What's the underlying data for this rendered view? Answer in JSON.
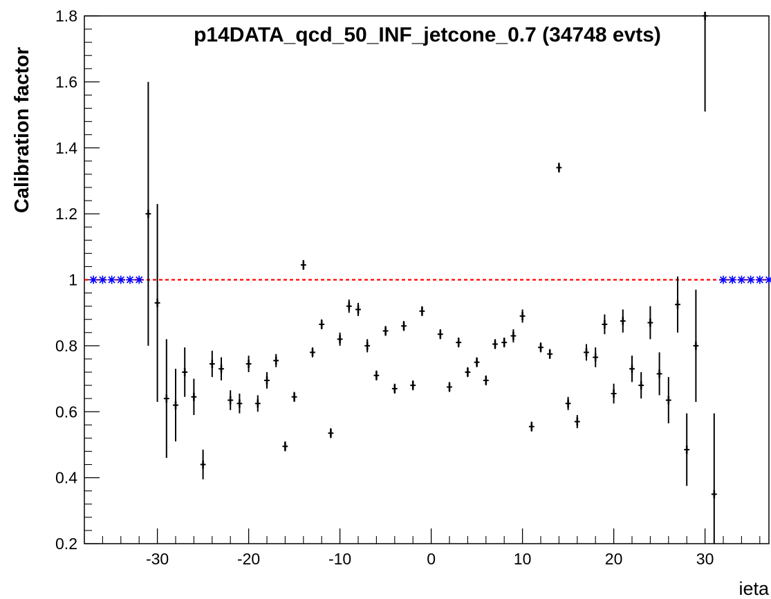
{
  "chart_data": {
    "type": "scatter",
    "title": "p14DATA_qcd_50_INF_jetcone_0.7 (34748 evts)",
    "xlabel": "ieta",
    "ylabel": "Calibration factor",
    "xlim": [
      -38,
      37
    ],
    "ylim": [
      0.2,
      1.8
    ],
    "xticks": [
      -30,
      -20,
      -10,
      0,
      10,
      20,
      30
    ],
    "xtick_labels": [
      "-30",
      "-20",
      "-10",
      "0",
      "10",
      "20",
      "30"
    ],
    "yticks": [
      0.2,
      0.4,
      0.6,
      0.8,
      1.0,
      1.2,
      1.4,
      1.6,
      1.8
    ],
    "ytick_labels": [
      "0.2",
      "0.4",
      "0.6",
      "0.8",
      "1",
      "1.2",
      "1.4",
      "1.6",
      "1.8"
    ],
    "grid": false,
    "reference_line": {
      "y": 1.0,
      "color": "#ff0000",
      "style": "dashed"
    },
    "colors": {
      "points": "#000000",
      "default_markers": "#0000ff",
      "reference": "#ff0000"
    },
    "series": [
      {
        "marker": "cross-with-error-bars",
        "points": [
          {
            "x": -31,
            "y": 1.2,
            "err": 0.4
          },
          {
            "x": -30,
            "y": 0.93,
            "err": 0.3
          },
          {
            "x": -29,
            "y": 0.64,
            "err": 0.18
          },
          {
            "x": -28,
            "y": 0.62,
            "err": 0.11
          },
          {
            "x": -27,
            "y": 0.72,
            "err": 0.075
          },
          {
            "x": -26,
            "y": 0.645,
            "err": 0.055
          },
          {
            "x": -25,
            "y": 0.44,
            "err": 0.045
          },
          {
            "x": -24,
            "y": 0.745,
            "err": 0.04
          },
          {
            "x": -23,
            "y": 0.73,
            "err": 0.035
          },
          {
            "x": -22,
            "y": 0.635,
            "err": 0.03
          },
          {
            "x": -21,
            "y": 0.625,
            "err": 0.03
          },
          {
            "x": -20,
            "y": 0.745,
            "err": 0.025
          },
          {
            "x": -19,
            "y": 0.625,
            "err": 0.025
          },
          {
            "x": -18,
            "y": 0.695,
            "err": 0.025
          },
          {
            "x": -17,
            "y": 0.755,
            "err": 0.02
          },
          {
            "x": -16,
            "y": 0.495,
            "err": 0.015
          },
          {
            "x": -15,
            "y": 0.645,
            "err": 0.015
          },
          {
            "x": -14,
            "y": 1.045,
            "err": 0.015
          },
          {
            "x": -13,
            "y": 0.78,
            "err": 0.015
          },
          {
            "x": -12,
            "y": 0.865,
            "err": 0.015
          },
          {
            "x": -11,
            "y": 0.535,
            "err": 0.015
          },
          {
            "x": -10,
            "y": 0.82,
            "err": 0.02
          },
          {
            "x": -9,
            "y": 0.92,
            "err": 0.02
          },
          {
            "x": -8,
            "y": 0.91,
            "err": 0.02
          },
          {
            "x": -7,
            "y": 0.8,
            "err": 0.02
          },
          {
            "x": -6,
            "y": 0.71,
            "err": 0.015
          },
          {
            "x": -5,
            "y": 0.845,
            "err": 0.015
          },
          {
            "x": -4,
            "y": 0.67,
            "err": 0.015
          },
          {
            "x": -3,
            "y": 0.86,
            "err": 0.015
          },
          {
            "x": -2,
            "y": 0.68,
            "err": 0.015
          },
          {
            "x": -1,
            "y": 0.905,
            "err": 0.015
          },
          {
            "x": 1,
            "y": 0.835,
            "err": 0.015
          },
          {
            "x": 2,
            "y": 0.675,
            "err": 0.015
          },
          {
            "x": 3,
            "y": 0.81,
            "err": 0.015
          },
          {
            "x": 4,
            "y": 0.72,
            "err": 0.015
          },
          {
            "x": 5,
            "y": 0.75,
            "err": 0.015
          },
          {
            "x": 6,
            "y": 0.695,
            "err": 0.015
          },
          {
            "x": 7,
            "y": 0.805,
            "err": 0.015
          },
          {
            "x": 8,
            "y": 0.81,
            "err": 0.015
          },
          {
            "x": 9,
            "y": 0.83,
            "err": 0.02
          },
          {
            "x": 10,
            "y": 0.89,
            "err": 0.02
          },
          {
            "x": 11,
            "y": 0.555,
            "err": 0.015
          },
          {
            "x": 12,
            "y": 0.795,
            "err": 0.015
          },
          {
            "x": 13,
            "y": 0.775,
            "err": 0.015
          },
          {
            "x": 14,
            "y": 1.34,
            "err": 0.015
          },
          {
            "x": 15,
            "y": 0.625,
            "err": 0.02
          },
          {
            "x": 16,
            "y": 0.57,
            "err": 0.02
          },
          {
            "x": 17,
            "y": 0.78,
            "err": 0.025
          },
          {
            "x": 18,
            "y": 0.765,
            "err": 0.03
          },
          {
            "x": 19,
            "y": 0.865,
            "err": 0.03
          },
          {
            "x": 20,
            "y": 0.655,
            "err": 0.03
          },
          {
            "x": 21,
            "y": 0.875,
            "err": 0.035
          },
          {
            "x": 22,
            "y": 0.73,
            "err": 0.04
          },
          {
            "x": 23,
            "y": 0.68,
            "err": 0.04
          },
          {
            "x": 24,
            "y": 0.87,
            "err": 0.05
          },
          {
            "x": 25,
            "y": 0.715,
            "err": 0.065
          },
          {
            "x": 26,
            "y": 0.635,
            "err": 0.07
          },
          {
            "x": 27,
            "y": 0.925,
            "err": 0.085
          },
          {
            "x": 28,
            "y": 0.485,
            "err": 0.11
          },
          {
            "x": 29,
            "y": 0.8,
            "err": 0.17
          },
          {
            "x": 30,
            "y": 1.8,
            "err": 0.29
          },
          {
            "x": 31,
            "y": 0.35,
            "err": 0.245
          }
        ]
      },
      {
        "marker": "blue-star",
        "points": [
          {
            "x": -37,
            "y": 1.0
          },
          {
            "x": -36,
            "y": 1.0
          },
          {
            "x": -35,
            "y": 1.0
          },
          {
            "x": -34,
            "y": 1.0
          },
          {
            "x": -33,
            "y": 1.0
          },
          {
            "x": -32,
            "y": 1.0
          },
          {
            "x": 32,
            "y": 1.0
          },
          {
            "x": 33,
            "y": 1.0
          },
          {
            "x": 34,
            "y": 1.0
          },
          {
            "x": 35,
            "y": 1.0
          },
          {
            "x": 36,
            "y": 1.0
          },
          {
            "x": 37,
            "y": 1.0
          }
        ]
      }
    ]
  }
}
